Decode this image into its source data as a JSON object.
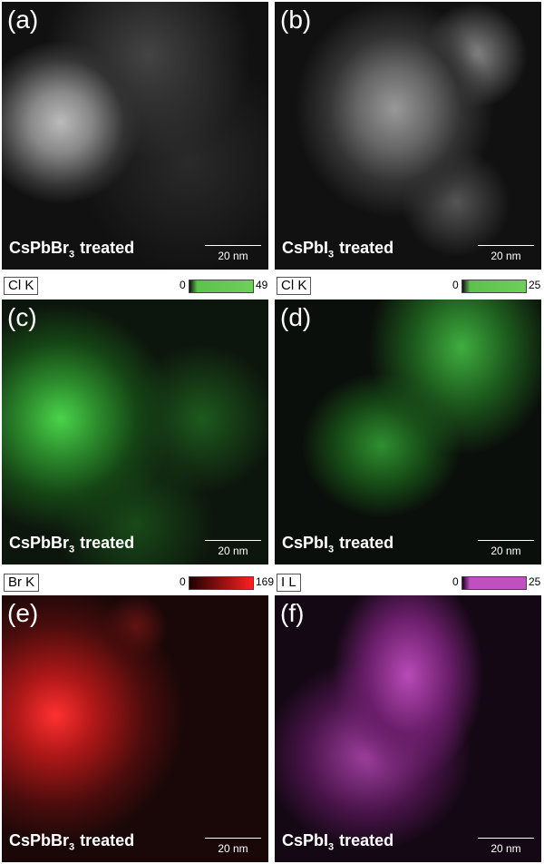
{
  "panels": [
    {
      "label": "(a)",
      "caption": {
        "formula": "CsPbBr",
        "subscript": "3",
        "suffix": "treated"
      },
      "scale_bar": "20 nm"
    },
    {
      "label": "(b)",
      "caption": {
        "formula": "CsPbI",
        "subscript": "3",
        "suffix": "treated"
      },
      "scale_bar": "20 nm"
    },
    {
      "label": "(c)",
      "caption": {
        "formula": "CsPbBr",
        "subscript": "3",
        "suffix": "treated"
      },
      "scale_bar": "20 nm"
    },
    {
      "label": "(d)",
      "caption": {
        "formula": "CsPbI",
        "subscript": "3",
        "suffix": "treated"
      },
      "scale_bar": "20 nm"
    },
    {
      "label": "(e)",
      "caption": {
        "formula": "CsPbBr",
        "subscript": "3",
        "suffix": "treated"
      },
      "scale_bar": "20 nm"
    },
    {
      "label": "(f)",
      "caption": {
        "formula": "CsPbI",
        "subscript": "3",
        "suffix": "treated"
      },
      "scale_bar": "20 nm"
    }
  ],
  "colorbars": [
    {
      "element": "Cl K",
      "min": 0,
      "max": 49
    },
    {
      "element": "Cl K",
      "min": 0,
      "max": 25
    },
    {
      "element": "Br K",
      "min": 0,
      "max": 169
    },
    {
      "element": "I L",
      "min": 0,
      "max": 25
    }
  ]
}
